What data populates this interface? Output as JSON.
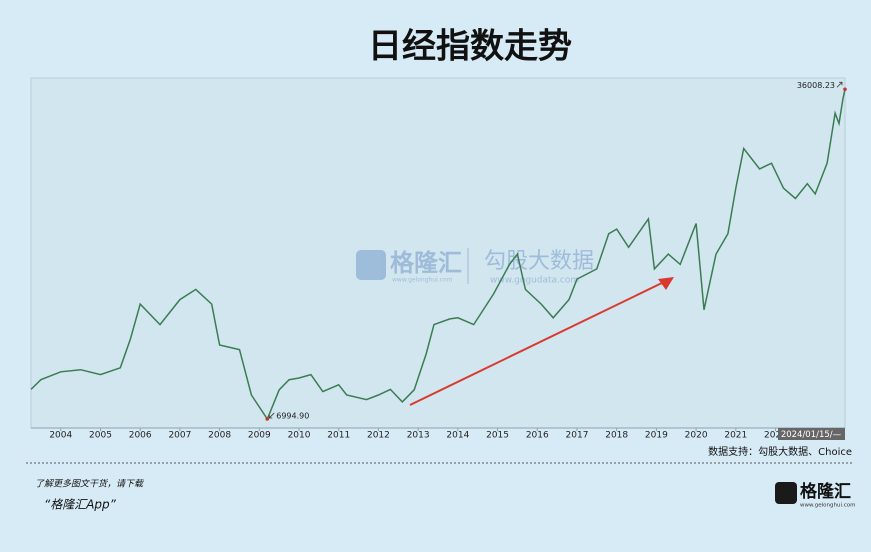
{
  "chart_data": {
    "type": "line",
    "title": "日经指数走势",
    "x": [
      2003.25,
      2003.5,
      2004.0,
      2004.5,
      2005.0,
      2005.5,
      2005.75,
      2006.0,
      2006.5,
      2007.0,
      2007.4,
      2007.8,
      2008.0,
      2008.5,
      2008.8,
      2009.2,
      2009.5,
      2009.75,
      2010.0,
      2010.3,
      2010.6,
      2011.0,
      2011.2,
      2011.7,
      2012.0,
      2012.3,
      2012.6,
      2012.9,
      2013.2,
      2013.4,
      2013.8,
      2014.0,
      2014.4,
      2014.9,
      2015.3,
      2015.5,
      2015.7,
      2016.1,
      2016.4,
      2016.8,
      2017.0,
      2017.5,
      2017.8,
      2018.0,
      2018.3,
      2018.8,
      2018.95,
      2019.3,
      2019.6,
      2019.9,
      2020.0,
      2020.2,
      2020.5,
      2020.8,
      2021.0,
      2021.2,
      2021.6,
      2021.9,
      2022.2,
      2022.5,
      2022.8,
      2023.0,
      2023.3,
      2023.5,
      2023.6,
      2023.7,
      2023.75
    ],
    "values": [
      9600,
      10450,
      11150,
      11330,
      10900,
      11500,
      14000,
      17100,
      15300,
      17500,
      18400,
      17100,
      13500,
      13100,
      9100,
      6994.9,
      9560,
      10450,
      10600,
      10900,
      9400,
      10000,
      9100,
      8700,
      9100,
      9600,
      8500,
      9560,
      12700,
      15300,
      15800,
      15900,
      15300,
      18000,
      20600,
      21500,
      18400,
      17100,
      15900,
      17500,
      19300,
      20200,
      23300,
      23700,
      22100,
      24600,
      20200,
      21500,
      20600,
      23300,
      24200,
      16600,
      21500,
      23300,
      27300,
      30800,
      29000,
      29500,
      27300,
      26400,
      27700,
      26800,
      29500,
      33900,
      33000,
      35200,
      36008.23
    ],
    "value_labels": [
      null,
      null,
      null,
      null,
      null,
      null,
      null,
      null,
      null,
      null,
      null,
      null,
      null,
      null,
      null,
      "6994.90",
      null,
      null,
      null,
      null,
      null,
      null,
      null,
      null,
      null,
      null,
      null,
      null,
      null,
      null,
      null,
      null,
      null,
      null,
      null,
      null,
      null,
      null,
      null,
      null,
      null,
      null,
      null,
      null,
      null,
      null,
      null,
      null,
      null,
      null,
      null,
      null,
      null,
      null,
      null,
      null,
      null,
      null,
      null,
      null,
      null,
      null,
      null,
      null,
      null,
      null,
      "36008.23"
    ],
    "color": "#3a7d52",
    "xlim": [
      2003.25,
      2023.75
    ],
    "ylim": [
      6200,
      37000
    ],
    "xticks": [
      2004,
      2005,
      2006,
      2007,
      2008,
      2009,
      2010,
      2011,
      2012,
      2013,
      2014,
      2015,
      2016,
      2017,
      2018,
      2019,
      2020,
      2021,
      2022,
      {
        "value": 2023,
        "label": "20"
      }
    ],
    "cursor_label": "2024/01/15/—",
    "source": "数据支持：勾股大数据、Choice"
  },
  "watermark": {
    "brand": "格隆汇",
    "brand_url": "www.gelonghui.com",
    "partner": "勾股大数据",
    "partner_url": "www.gogudata.com"
  },
  "footer": {
    "prompt": "了解更多图文干货，请下载",
    "app": "“格隆汇App”",
    "logo": "格隆汇",
    "logo_url": "www.gelonghui.com"
  }
}
